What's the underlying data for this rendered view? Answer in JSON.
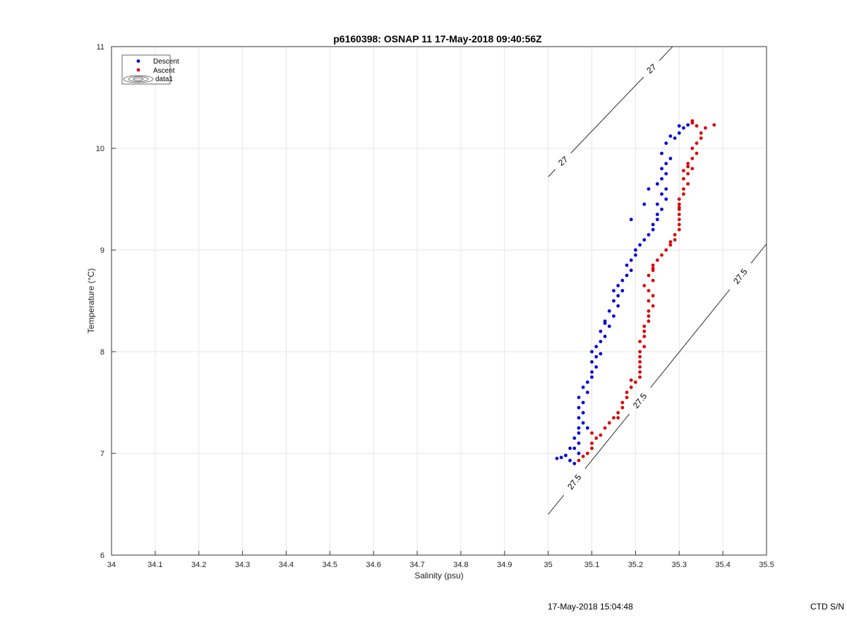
{
  "chart_data": {
    "type": "scatter",
    "title": "p6160398: OSNAP 11 17-May-2018 09:40:56Z",
    "xlabel": "Salinity (psu)",
    "ylabel": "Temperature (°C)",
    "xlim": [
      34,
      35.5
    ],
    "ylim": [
      6,
      11
    ],
    "xticks": [
      "34",
      "34.1",
      "34.2",
      "34.3",
      "34.4",
      "34.5",
      "34.6",
      "34.7",
      "34.8",
      "34.9",
      "35",
      "35.1",
      "35.2",
      "35.3",
      "35.4",
      "35.5"
    ],
    "yticks": [
      "6",
      "7",
      "8",
      "9",
      "10",
      "11"
    ],
    "grid": true,
    "legend_position": "top-left",
    "legend": [
      "Descent",
      "Ascent",
      "data1"
    ],
    "series": [
      {
        "name": "Descent",
        "color": "#0000dd",
        "points": [
          [
            35.02,
            6.95
          ],
          [
            35.03,
            6.96
          ],
          [
            35.04,
            6.98
          ],
          [
            35.05,
            6.93
          ],
          [
            35.06,
            6.9
          ],
          [
            35.07,
            7.0
          ],
          [
            35.06,
            7.05
          ],
          [
            35.07,
            7.1
          ],
          [
            35.06,
            7.15
          ],
          [
            35.07,
            7.2
          ],
          [
            35.07,
            7.25
          ],
          [
            35.08,
            7.3
          ],
          [
            35.07,
            7.35
          ],
          [
            35.08,
            7.4
          ],
          [
            35.07,
            7.45
          ],
          [
            35.08,
            7.5
          ],
          [
            35.07,
            7.55
          ],
          [
            35.09,
            7.6
          ],
          [
            35.08,
            7.65
          ],
          [
            35.09,
            7.7
          ],
          [
            35.1,
            7.75
          ],
          [
            35.1,
            7.8
          ],
          [
            35.11,
            7.85
          ],
          [
            35.1,
            7.9
          ],
          [
            35.11,
            7.95
          ],
          [
            35.1,
            8.0
          ],
          [
            35.12,
            7.98
          ],
          [
            35.11,
            8.05
          ],
          [
            35.12,
            8.1
          ],
          [
            35.13,
            8.15
          ],
          [
            35.12,
            8.2
          ],
          [
            35.14,
            8.25
          ],
          [
            35.13,
            8.3
          ],
          [
            35.15,
            8.35
          ],
          [
            35.14,
            8.4
          ],
          [
            35.16,
            8.45
          ],
          [
            35.15,
            8.5
          ],
          [
            35.16,
            8.55
          ],
          [
            35.17,
            8.6
          ],
          [
            35.16,
            8.65
          ],
          [
            35.17,
            8.7
          ],
          [
            35.18,
            8.75
          ],
          [
            35.19,
            8.8
          ],
          [
            35.18,
            8.85
          ],
          [
            35.19,
            8.9
          ],
          [
            35.2,
            8.95
          ],
          [
            35.2,
            9.0
          ],
          [
            35.21,
            9.05
          ],
          [
            35.22,
            9.1
          ],
          [
            35.23,
            9.15
          ],
          [
            35.24,
            9.2
          ],
          [
            35.24,
            9.25
          ],
          [
            35.25,
            9.3
          ],
          [
            35.25,
            9.35
          ],
          [
            35.26,
            9.4
          ],
          [
            35.25,
            9.45
          ],
          [
            35.27,
            9.5
          ],
          [
            35.26,
            9.55
          ],
          [
            35.27,
            9.6
          ],
          [
            35.25,
            9.65
          ],
          [
            35.26,
            9.7
          ],
          [
            35.27,
            9.75
          ],
          [
            35.26,
            9.8
          ],
          [
            35.27,
            9.85
          ],
          [
            35.28,
            9.9
          ],
          [
            35.26,
            9.95
          ],
          [
            35.27,
            10.05
          ],
          [
            35.29,
            10.1
          ],
          [
            35.3,
            10.15
          ],
          [
            35.31,
            10.2
          ],
          [
            35.3,
            10.22
          ],
          [
            35.32,
            10.23
          ],
          [
            35.28,
            10.12
          ],
          [
            35.23,
            9.6
          ],
          [
            35.22,
            9.45
          ],
          [
            35.19,
            9.3
          ],
          [
            35.15,
            8.6
          ],
          [
            35.13,
            8.28
          ],
          [
            35.09,
            7.25
          ],
          [
            35.05,
            7.05
          ]
        ]
      },
      {
        "name": "Ascent",
        "color": "#dd0000",
        "points": [
          [
            35.07,
            6.93
          ],
          [
            35.08,
            6.97
          ],
          [
            35.09,
            7.0
          ],
          [
            35.1,
            7.05
          ],
          [
            35.1,
            7.1
          ],
          [
            35.11,
            7.15
          ],
          [
            35.1,
            7.2
          ],
          [
            35.12,
            7.18
          ],
          [
            35.13,
            7.25
          ],
          [
            35.14,
            7.3
          ],
          [
            35.15,
            7.35
          ],
          [
            35.16,
            7.4
          ],
          [
            35.17,
            7.45
          ],
          [
            35.17,
            7.5
          ],
          [
            35.18,
            7.55
          ],
          [
            35.18,
            7.6
          ],
          [
            35.19,
            7.65
          ],
          [
            35.2,
            7.7
          ],
          [
            35.21,
            7.75
          ],
          [
            35.21,
            7.8
          ],
          [
            35.21,
            7.85
          ],
          [
            35.21,
            7.9
          ],
          [
            35.21,
            7.95
          ],
          [
            35.21,
            8.0
          ],
          [
            35.22,
            8.05
          ],
          [
            35.21,
            8.1
          ],
          [
            35.22,
            8.15
          ],
          [
            35.22,
            8.2
          ],
          [
            35.22,
            8.25
          ],
          [
            35.23,
            8.3
          ],
          [
            35.23,
            8.35
          ],
          [
            35.23,
            8.4
          ],
          [
            35.24,
            8.45
          ],
          [
            35.23,
            8.5
          ],
          [
            35.24,
            8.55
          ],
          [
            35.23,
            8.6
          ],
          [
            35.22,
            8.65
          ],
          [
            35.24,
            8.7
          ],
          [
            35.23,
            8.75
          ],
          [
            35.24,
            8.8
          ],
          [
            35.24,
            8.85
          ],
          [
            35.25,
            8.9
          ],
          [
            35.26,
            8.95
          ],
          [
            35.27,
            9.0
          ],
          [
            35.28,
            9.05
          ],
          [
            35.29,
            9.1
          ],
          [
            35.29,
            9.15
          ],
          [
            35.3,
            9.2
          ],
          [
            35.3,
            9.25
          ],
          [
            35.3,
            9.3
          ],
          [
            35.3,
            9.35
          ],
          [
            35.3,
            9.4
          ],
          [
            35.3,
            9.45
          ],
          [
            35.3,
            9.5
          ],
          [
            35.31,
            9.55
          ],
          [
            35.31,
            9.6
          ],
          [
            35.32,
            9.65
          ],
          [
            35.31,
            9.7
          ],
          [
            35.32,
            9.75
          ],
          [
            35.33,
            9.8
          ],
          [
            35.32,
            9.85
          ],
          [
            35.33,
            9.9
          ],
          [
            35.34,
            9.95
          ],
          [
            35.33,
            10.0
          ],
          [
            35.34,
            10.05
          ],
          [
            35.35,
            10.1
          ],
          [
            35.35,
            10.15
          ],
          [
            35.33,
            10.25
          ],
          [
            35.34,
            10.22
          ],
          [
            35.36,
            10.2
          ],
          [
            35.38,
            10.23
          ],
          [
            35.33,
            10.27
          ],
          [
            35.32,
            9.82
          ],
          [
            35.31,
            9.78
          ],
          [
            35.22,
            8.2
          ],
          [
            35.24,
            8.82
          ],
          [
            35.16,
            7.35
          ],
          [
            35.19,
            7.72
          ],
          [
            35.28,
            9.08
          ],
          [
            35.3,
            9.42
          ]
        ]
      }
    ],
    "contours": [
      {
        "label": "27",
        "from": [
          35.0,
          9.72
        ],
        "to": [
          35.285,
          11.0
        ],
        "labels_at": [
          0.12,
          0.83
        ],
        "label_angle": -40
      },
      {
        "label": "27.5",
        "from": [
          35.0,
          6.4
        ],
        "to": [
          35.5,
          9.06
        ],
        "labels_at": [
          0.12,
          0.42,
          0.88
        ],
        "label_angle": -52
      }
    ]
  },
  "footer": {
    "timestamp": "17-May-2018 15:04:48",
    "ctd": "CTD S/N"
  }
}
